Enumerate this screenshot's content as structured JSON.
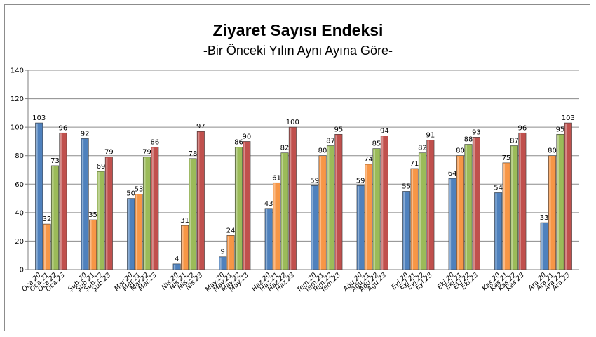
{
  "chart_data": {
    "type": "bar",
    "title": "Ziyaret Sayısı Endeksi",
    "subtitle": "-Bir Önceki Yılın Aynı Ayına Göre-",
    "xlabel": "",
    "ylabel": "",
    "ylim": [
      0,
      140
    ],
    "yticks": [
      "0",
      "20",
      "40",
      "60",
      "80",
      "100",
      "120",
      "140"
    ],
    "grid": true,
    "legend": "none",
    "colors": [
      "#4f81bd",
      "#f79646",
      "#9bbb59",
      "#c0504d"
    ],
    "groups": [
      {
        "labels": [
          "Oca.20",
          "Oca.21",
          "Oca.22",
          "Oca.23"
        ],
        "values": [
          103,
          32,
          73,
          96
        ]
      },
      {
        "labels": [
          "Şub.20",
          "Şub.21",
          "Şub.22",
          "Şub.23"
        ],
        "values": [
          92,
          35,
          69,
          79
        ]
      },
      {
        "labels": [
          "Mar.20",
          "Mar.21",
          "Mar.22",
          "Mar.23"
        ],
        "values": [
          50,
          53,
          79,
          86
        ]
      },
      {
        "labels": [
          "Nis.20",
          "Nis.21",
          "Nis.22",
          "Nis.23"
        ],
        "values": [
          4,
          31,
          78,
          97
        ]
      },
      {
        "labels": [
          "May.20",
          "May.21",
          "May.22",
          "May.23"
        ],
        "values": [
          9,
          24,
          86,
          90
        ]
      },
      {
        "labels": [
          "Haz.20",
          "Haz.21",
          "Haz.22",
          "Haz.23"
        ],
        "values": [
          43,
          61,
          82,
          100
        ]
      },
      {
        "labels": [
          "Tem.20",
          "Tem.21",
          "Tem.22",
          "Tem.23"
        ],
        "values": [
          59,
          80,
          87,
          95
        ]
      },
      {
        "labels": [
          "Ağu.20",
          "Ağu.21",
          "Ağu.22",
          "Ağu.23"
        ],
        "values": [
          59,
          74,
          85,
          94
        ]
      },
      {
        "labels": [
          "Eyl.20",
          "Eyl.21",
          "Eyl.22",
          "Eyl.23"
        ],
        "values": [
          55,
          71,
          82,
          91
        ]
      },
      {
        "labels": [
          "Eki.20",
          "Eki.21",
          "Eki.22",
          "Eki.23"
        ],
        "values": [
          64,
          80,
          88,
          93
        ]
      },
      {
        "labels": [
          "Kas.20",
          "Kas.21",
          "Kas.22",
          "Kas.23"
        ],
        "values": [
          54,
          75,
          87,
          96
        ]
      },
      {
        "labels": [
          "Ara.20",
          "Ara.21",
          "Ara.22",
          "Ara.23"
        ],
        "values": [
          33,
          80,
          95,
          103
        ]
      }
    ]
  }
}
